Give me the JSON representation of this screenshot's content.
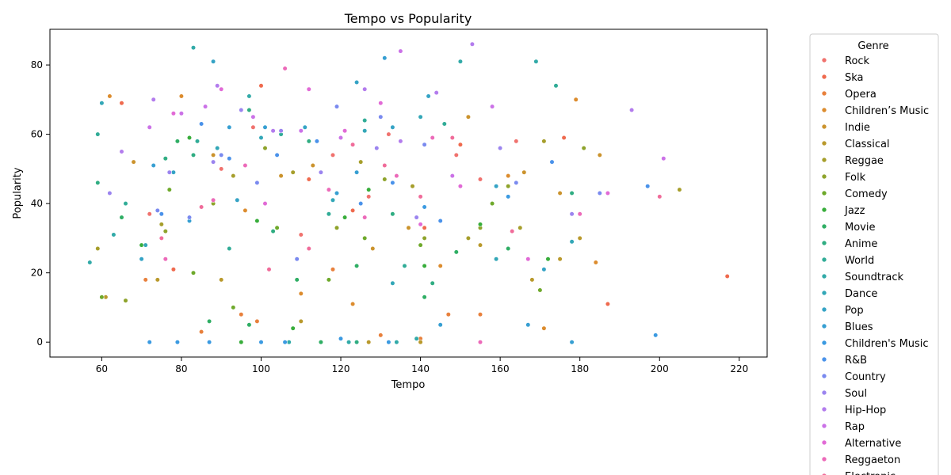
{
  "chart_data": {
    "type": "scatter",
    "title": "Tempo vs Popularity",
    "xlabel": "Tempo",
    "ylabel": "Popularity",
    "xlim": [
      47,
      227
    ],
    "ylim": [
      -4.3,
      90.3
    ],
    "xticks": [
      60,
      80,
      100,
      120,
      140,
      160,
      180,
      200,
      220
    ],
    "yticks": [
      0,
      20,
      40,
      60,
      80
    ],
    "grid": false,
    "legend": {
      "title": "Genre",
      "placement": "outside-right",
      "visible_entries": [
        "Rock",
        "Ska",
        "Opera",
        "Children’s Music",
        "Indie",
        "Classical",
        "Reggae",
        "Folk",
        "Comedy",
        "Jazz",
        "Movie",
        "Anime",
        "World",
        "Soundtrack",
        "Dance",
        "Pop",
        "Blues",
        "Children's Music",
        "R&B",
        "Country",
        "Soul",
        "Hip-Hop",
        "Rap",
        "Alternative",
        "Reggaeton",
        "Electronic"
      ]
    },
    "series": [
      {
        "name": "Rock",
        "color": "#f0726e",
        "points": [
          [
            72,
            37
          ],
          [
            118,
            54
          ],
          [
            132,
            60
          ],
          [
            149,
            54
          ],
          [
            164,
            58
          ],
          [
            90,
            50
          ],
          [
            98,
            62
          ],
          [
            155,
            47
          ],
          [
            110,
            31
          ],
          [
            127,
            42
          ]
        ]
      },
      {
        "name": "Ska",
        "color": "#ef6a4e",
        "points": [
          [
            65,
            69
          ],
          [
            78,
            21
          ],
          [
            100,
            74
          ],
          [
            217,
            19
          ],
          [
            176,
            59
          ],
          [
            123,
            38
          ],
          [
            141,
            33
          ],
          [
            187,
            11
          ],
          [
            112,
            47
          ],
          [
            150,
            57
          ]
        ]
      },
      {
        "name": "Opera",
        "color": "#e8803c",
        "points": [
          [
            71,
            18
          ],
          [
            79,
            0
          ],
          [
            85,
            3
          ],
          [
            95,
            8
          ],
          [
            99,
            6
          ],
          [
            118,
            21
          ],
          [
            130,
            2
          ],
          [
            140,
            1
          ],
          [
            147,
            8
          ],
          [
            155,
            8
          ]
        ]
      },
      {
        "name": "Children’s Music",
        "color": "#dc8c2e",
        "points": [
          [
            62,
            71
          ],
          [
            80,
            71
          ],
          [
            96,
            38
          ],
          [
            110,
            14
          ],
          [
            123,
            11
          ],
          [
            145,
            22
          ],
          [
            162,
            48
          ],
          [
            171,
            4
          ],
          [
            179,
            70
          ],
          [
            184,
            23
          ]
        ]
      },
      {
        "name": "Indie",
        "color": "#cb932d",
        "points": [
          [
            68,
            52
          ],
          [
            88,
            54
          ],
          [
            105,
            48
          ],
          [
            113,
            51
          ],
          [
            128,
            27
          ],
          [
            137,
            33
          ],
          [
            152,
            65
          ],
          [
            166,
            49
          ],
          [
            175,
            43
          ],
          [
            185,
            54
          ]
        ]
      },
      {
        "name": "Classical",
        "color": "#b9992c",
        "points": [
          [
            61,
            13
          ],
          [
            74,
            18
          ],
          [
            90,
            18
          ],
          [
            110,
            6
          ],
          [
            127,
            0
          ],
          [
            140,
            0
          ],
          [
            155,
            28
          ],
          [
            168,
            18
          ],
          [
            175,
            24
          ],
          [
            180,
            30
          ]
        ]
      },
      {
        "name": "Reggae",
        "color": "#a69e2b",
        "points": [
          [
            59,
            27
          ],
          [
            75,
            34
          ],
          [
            93,
            48
          ],
          [
            108,
            49
          ],
          [
            125,
            52
          ],
          [
            138,
            45
          ],
          [
            152,
            30
          ],
          [
            165,
            33
          ],
          [
            171,
            58
          ],
          [
            205,
            44
          ]
        ]
      },
      {
        "name": "Folk",
        "color": "#8ea32b",
        "points": [
          [
            66,
            12
          ],
          [
            76,
            32
          ],
          [
            88,
            40
          ],
          [
            101,
            56
          ],
          [
            119,
            33
          ],
          [
            131,
            47
          ],
          [
            141,
            30
          ],
          [
            155,
            33
          ],
          [
            162,
            45
          ],
          [
            181,
            56
          ]
        ]
      },
      {
        "name": "Comedy",
        "color": "#6ea92b",
        "points": [
          [
            60,
            13
          ],
          [
            77,
            44
          ],
          [
            83,
            20
          ],
          [
            93,
            10
          ],
          [
            104,
            33
          ],
          [
            117,
            18
          ],
          [
            126,
            30
          ],
          [
            140,
            28
          ],
          [
            158,
            40
          ],
          [
            170,
            15
          ]
        ]
      },
      {
        "name": "Jazz",
        "color": "#38ad3b",
        "points": [
          [
            70,
            28
          ],
          [
            82,
            59
          ],
          [
            95,
            0
          ],
          [
            99,
            35
          ],
          [
            108,
            4
          ],
          [
            121,
            36
          ],
          [
            127,
            44
          ],
          [
            141,
            22
          ],
          [
            155,
            34
          ],
          [
            172,
            24
          ]
        ]
      },
      {
        "name": "Movie",
        "color": "#2fae64",
        "points": [
          [
            65,
            36
          ],
          [
            79,
            58
          ],
          [
            87,
            6
          ],
          [
            97,
            5
          ],
          [
            109,
            18
          ],
          [
            115,
            0
          ],
          [
            124,
            22
          ],
          [
            141,
            13
          ],
          [
            149,
            26
          ],
          [
            162,
            27
          ]
        ]
      },
      {
        "name": "Anime",
        "color": "#30ad82",
        "points": [
          [
            59,
            46
          ],
          [
            76,
            53
          ],
          [
            83,
            54
          ],
          [
            97,
            67
          ],
          [
            103,
            32
          ],
          [
            112,
            58
          ],
          [
            124,
            0
          ],
          [
            133,
            37
          ],
          [
            143,
            17
          ],
          [
            178,
            43
          ]
        ]
      },
      {
        "name": "World",
        "color": "#31ac97",
        "points": [
          [
            59,
            60
          ],
          [
            66,
            40
          ],
          [
            84,
            58
          ],
          [
            92,
            27
          ],
          [
            105,
            60
          ],
          [
            117,
            37
          ],
          [
            126,
            64
          ],
          [
            136,
            22
          ],
          [
            146,
            63
          ],
          [
            174,
            74
          ]
        ]
      },
      {
        "name": "Soundtrack",
        "color": "#32aaa8",
        "points": [
          [
            57,
            23
          ],
          [
            63,
            31
          ],
          [
            83,
            85
          ],
          [
            97,
            71
          ],
          [
            107,
            0
          ],
          [
            122,
            0
          ],
          [
            134,
            0
          ],
          [
            139,
            1
          ],
          [
            150,
            81
          ],
          [
            169,
            81
          ]
        ]
      },
      {
        "name": "Dance",
        "color": "#33a7b7",
        "points": [
          [
            60,
            69
          ],
          [
            71,
            28
          ],
          [
            89,
            56
          ],
          [
            100,
            59
          ],
          [
            118,
            41
          ],
          [
            126,
            61
          ],
          [
            133,
            17
          ],
          [
            140,
            65
          ],
          [
            159,
            24
          ],
          [
            178,
            29
          ]
        ]
      },
      {
        "name": "Pop",
        "color": "#35a3c5",
        "points": [
          [
            70,
            24
          ],
          [
            78,
            49
          ],
          [
            88,
            81
          ],
          [
            94,
            41
          ],
          [
            111,
            62
          ],
          [
            124,
            75
          ],
          [
            133,
            62
          ],
          [
            142,
            71
          ],
          [
            159,
            45
          ],
          [
            171,
            21
          ]
        ]
      },
      {
        "name": "Blues",
        "color": "#379fd2",
        "points": [
          [
            73,
            51
          ],
          [
            82,
            35
          ],
          [
            92,
            62
          ],
          [
            101,
            62
          ],
          [
            119,
            43
          ],
          [
            124,
            49
          ],
          [
            131,
            82
          ],
          [
            145,
            5
          ],
          [
            167,
            5
          ],
          [
            178,
            0
          ]
        ]
      },
      {
        "name": "Children's Music",
        "color": "#3b9ae1",
        "points": [
          [
            72,
            0
          ],
          [
            79,
            0
          ],
          [
            87,
            0
          ],
          [
            100,
            0
          ],
          [
            106,
            0
          ],
          [
            120,
            1
          ],
          [
            132,
            0
          ],
          [
            141,
            39
          ],
          [
            162,
            42
          ],
          [
            199,
            2
          ]
        ]
      },
      {
        "name": "R&B",
        "color": "#4a92ea",
        "points": [
          [
            75,
            37
          ],
          [
            85,
            63
          ],
          [
            92,
            53
          ],
          [
            104,
            54
          ],
          [
            114,
            58
          ],
          [
            125,
            40
          ],
          [
            133,
            46
          ],
          [
            145,
            35
          ],
          [
            173,
            52
          ],
          [
            197,
            45
          ]
        ]
      },
      {
        "name": "Country",
        "color": "#7a8aef",
        "points": [
          [
            74,
            38
          ],
          [
            82,
            36
          ],
          [
            90,
            54
          ],
          [
            99,
            46
          ],
          [
            109,
            24
          ],
          [
            119,
            68
          ],
          [
            130,
            65
          ],
          [
            141,
            57
          ],
          [
            164,
            46
          ],
          [
            185,
            43
          ]
        ]
      },
      {
        "name": "Soul",
        "color": "#9b84ef",
        "points": [
          [
            62,
            43
          ],
          [
            77,
            49
          ],
          [
            88,
            52
          ],
          [
            95,
            67
          ],
          [
            105,
            61
          ],
          [
            115,
            49
          ],
          [
            129,
            56
          ],
          [
            139,
            36
          ],
          [
            160,
            56
          ],
          [
            178,
            37
          ]
        ]
      },
      {
        "name": "Hip-Hop",
        "color": "#b37ced",
        "points": [
          [
            65,
            55
          ],
          [
            73,
            70
          ],
          [
            89,
            74
          ],
          [
            103,
            61
          ],
          [
            112,
            73
          ],
          [
            126,
            73
          ],
          [
            135,
            58
          ],
          [
            144,
            72
          ],
          [
            153,
            86
          ],
          [
            193,
            67
          ]
        ]
      },
      {
        "name": "Rap",
        "color": "#cb72e7",
        "points": [
          [
            72,
            62
          ],
          [
            80,
            66
          ],
          [
            86,
            68
          ],
          [
            98,
            65
          ],
          [
            110,
            61
          ],
          [
            120,
            59
          ],
          [
            135,
            84
          ],
          [
            148,
            48
          ],
          [
            158,
            68
          ],
          [
            201,
            53
          ]
        ]
      },
      {
        "name": "Alternative",
        "color": "#e16ad6",
        "points": [
          [
            78,
            66
          ],
          [
            90,
            73
          ],
          [
            101,
            40
          ],
          [
            112,
            73
          ],
          [
            121,
            61
          ],
          [
            130,
            69
          ],
          [
            140,
            34
          ],
          [
            150,
            45
          ],
          [
            167,
            24
          ],
          [
            187,
            43
          ]
        ]
      },
      {
        "name": "Reggaeton",
        "color": "#ec6ab9",
        "points": [
          [
            76,
            24
          ],
          [
            88,
            41
          ],
          [
            96,
            51
          ],
          [
            106,
            79
          ],
          [
            117,
            44
          ],
          [
            126,
            36
          ],
          [
            134,
            48
          ],
          [
            143,
            59
          ],
          [
            155,
            0
          ],
          [
            180,
            37
          ]
        ]
      },
      {
        "name": "Electronic",
        "color": "#f06c9a",
        "points": [
          [
            75,
            30
          ],
          [
            85,
            39
          ],
          [
            102,
            21
          ],
          [
            112,
            27
          ],
          [
            123,
            57
          ],
          [
            131,
            51
          ],
          [
            140,
            42
          ],
          [
            148,
            59
          ],
          [
            163,
            32
          ],
          [
            200,
            42
          ]
        ]
      }
    ]
  }
}
